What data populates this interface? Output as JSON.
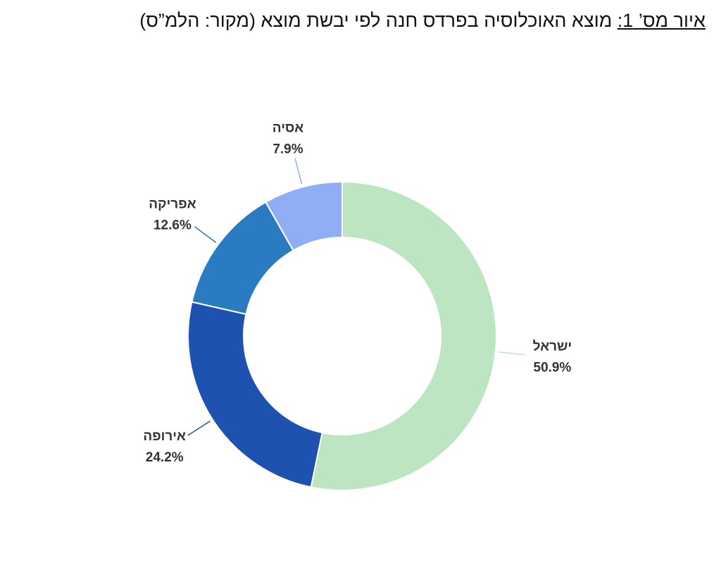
{
  "chart_data": {
    "type": "donut",
    "figure_label": "איור מס’ 1:",
    "title": "מוצא האוכלוסיה בפרדס חנה לפי יבשת מוצא (מקור: הלמ”ס)",
    "categories": [
      "ישראל",
      "אירופה",
      "אפריקה",
      "אסיה"
    ],
    "values": [
      50.9,
      24.2,
      12.6,
      7.9
    ],
    "value_labels": [
      "50.9%",
      "24.2%",
      "12.6%",
      "7.9%"
    ],
    "colors": [
      "#bde5c1",
      "#1e52b0",
      "#2b7bc2",
      "#90aef5"
    ]
  }
}
